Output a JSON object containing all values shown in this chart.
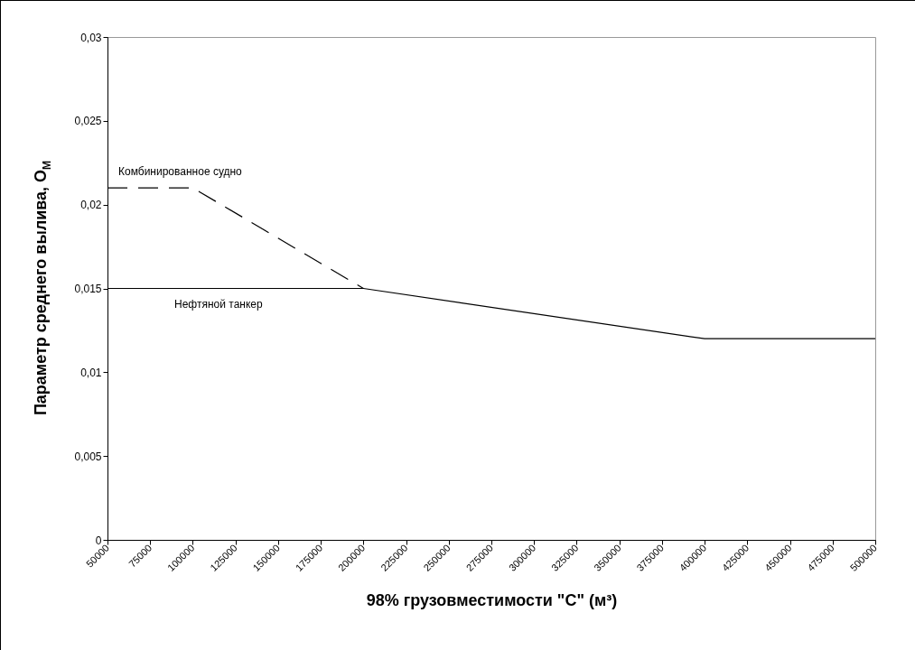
{
  "chart_data": {
    "type": "line",
    "xlabel": "98% грузовместимости \"С\" (м³)",
    "ylabel": "Параметр среднего вылива, О$_{М}$",
    "xlim": [
      50000,
      500000
    ],
    "xticks": [
      50000,
      75000,
      100000,
      125000,
      150000,
      175000,
      200000,
      225000,
      250000,
      275000,
      300000,
      325000,
      350000,
      375000,
      400000,
      425000,
      450000,
      475000,
      500000
    ],
    "ylim": [
      0,
      0.03
    ],
    "yticks": [
      {
        "value": 0,
        "label": "0"
      },
      {
        "value": 0.005,
        "label": "0,005"
      },
      {
        "value": 0.01,
        "label": "0,01"
      },
      {
        "value": 0.015,
        "label": "0,015"
      },
      {
        "value": 0.02,
        "label": "0,02"
      },
      {
        "value": 0.025,
        "label": "0,025"
      },
      {
        "value": 0.03,
        "label": "0,03"
      }
    ],
    "grid": false,
    "legend": false,
    "marker": "none",
    "series": [
      {
        "name": "Комбинированное судно",
        "color": "#000000",
        "line_style": "dashed",
        "x": [
          50000,
          100000,
          200000
        ],
        "values": [
          0.021,
          0.021,
          0.015
        ]
      },
      {
        "name": "Нефтяной танкер",
        "color": "#000000",
        "line_style": "solid",
        "x": [
          50000,
          200000,
          400000,
          500000
        ],
        "values": [
          0.015,
          0.015,
          0.012,
          0.012
        ]
      }
    ]
  }
}
